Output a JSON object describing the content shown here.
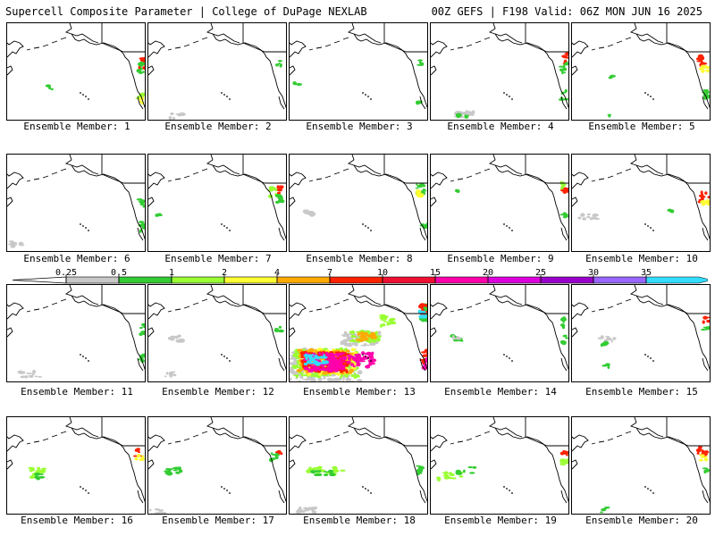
{
  "header": {
    "left": "Supercell Composite Parameter | College of DuPage NEXLAB",
    "right": "00Z GEFS | F198 Valid: 06Z MON JUN 16 2025"
  },
  "member_label_prefix": "Ensemble Member: ",
  "members": [
    {
      "id": 1,
      "label": "Ensemble Member: 1"
    },
    {
      "id": 2,
      "label": "Ensemble Member: 2"
    },
    {
      "id": 3,
      "label": "Ensemble Member: 3"
    },
    {
      "id": 4,
      "label": "Ensemble Member: 4"
    },
    {
      "id": 5,
      "label": "Ensemble Member: 5"
    },
    {
      "id": 6,
      "label": "Ensemble Member: 6"
    },
    {
      "id": 7,
      "label": "Ensemble Member: 7"
    },
    {
      "id": 8,
      "label": "Ensemble Member: 8"
    },
    {
      "id": 9,
      "label": "Ensemble Member: 9"
    },
    {
      "id": 10,
      "label": "Ensemble Member: 10"
    },
    {
      "id": 11,
      "label": "Ensemble Member: 11"
    },
    {
      "id": 12,
      "label": "Ensemble Member: 12"
    },
    {
      "id": 13,
      "label": "Ensemble Member: 13"
    },
    {
      "id": 14,
      "label": "Ensemble Member: 14"
    },
    {
      "id": 15,
      "label": "Ensemble Member: 15"
    },
    {
      "id": 16,
      "label": "Ensemble Member: 16"
    },
    {
      "id": 17,
      "label": "Ensemble Member: 17"
    },
    {
      "id": 18,
      "label": "Ensemble Member: 18"
    },
    {
      "id": 19,
      "label": "Ensemble Member: 19"
    },
    {
      "id": 20,
      "label": "Ensemble Member: 20"
    }
  ],
  "colorbar": {
    "ticks": [
      "0.25",
      "0.5",
      "1",
      "2",
      "4",
      "7",
      "10",
      "15",
      "20",
      "25",
      "30",
      "35"
    ],
    "colors": [
      "#c8c8c8",
      "#33cc33",
      "#99ff33",
      "#ffff33",
      "#ffaa00",
      "#ff2200",
      "#ee1133",
      "#ff00aa",
      "#dd00dd",
      "#9900cc",
      "#9966ff",
      "#33ddff"
    ]
  },
  "colors": {
    "land_outline": "#000000",
    "low_gray": "#c8c8c8",
    "green": "#33cc33",
    "light_green": "#99ff33",
    "yellow": "#ffff33",
    "orange": "#ffaa00",
    "red": "#ff2200",
    "magenta": "#ff00aa",
    "cyan": "#33ddff"
  }
}
